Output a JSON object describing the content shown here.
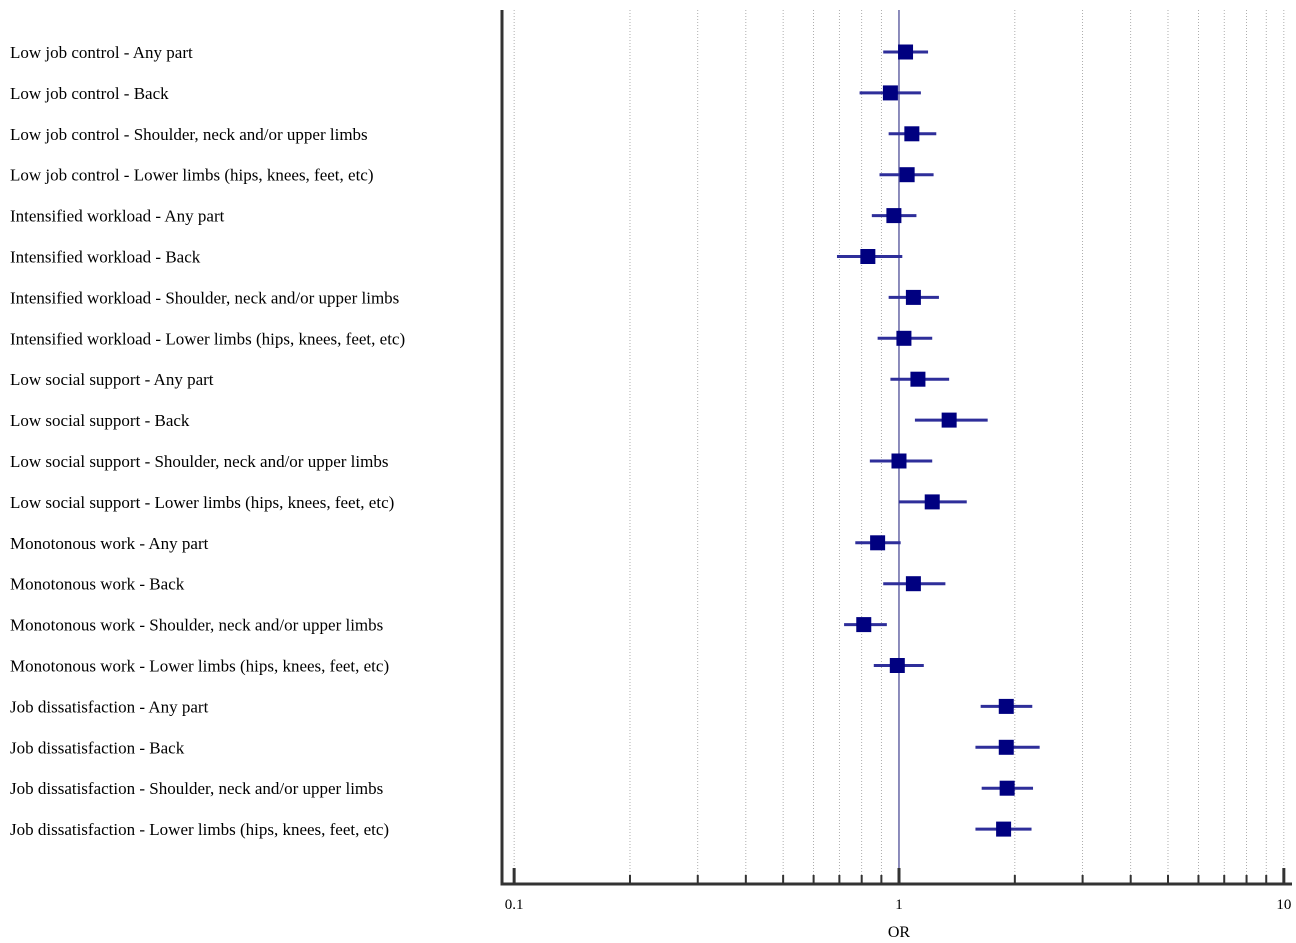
{
  "chart_data": {
    "type": "forest",
    "xlabel": "OR",
    "xscale": "log",
    "xlim": [
      0.093,
      10.5
    ],
    "reference_line": 1,
    "grid": "vertical-dotted",
    "ticks": [
      {
        "value": 0.1,
        "label": "0.1"
      },
      {
        "value": 1,
        "label": "1"
      },
      {
        "value": 10,
        "label": "10"
      }
    ],
    "colors": {
      "marker": "#000080",
      "ci": "#2e2e9a",
      "reference": "#1a1a7a",
      "axis": "#333333",
      "grid": "#9a9a9a"
    },
    "rows": [
      {
        "label": "Low job control - Any part",
        "or": 1.04,
        "lo": 0.91,
        "hi": 1.19
      },
      {
        "label": "Low job control - Back",
        "or": 0.95,
        "lo": 0.79,
        "hi": 1.14
      },
      {
        "label": "Low job control - Shoulder, neck and/or upper limbs",
        "or": 1.08,
        "lo": 0.94,
        "hi": 1.25
      },
      {
        "label": "Low job control - Lower limbs (hips, knees, feet, etc)",
        "or": 1.05,
        "lo": 0.89,
        "hi": 1.23
      },
      {
        "label": "Intensified workload - Any part",
        "or": 0.97,
        "lo": 0.85,
        "hi": 1.11
      },
      {
        "label": "Intensified workload - Back",
        "or": 0.83,
        "lo": 0.69,
        "hi": 1.02
      },
      {
        "label": "Intensified workload - Shoulder, neck and/or upper limbs",
        "or": 1.09,
        "lo": 0.94,
        "hi": 1.27
      },
      {
        "label": "Intensified workload - Lower limbs (hips, knees, feet, etc)",
        "or": 1.03,
        "lo": 0.88,
        "hi": 1.22
      },
      {
        "label": "Low social support - Any part",
        "or": 1.12,
        "lo": 0.95,
        "hi": 1.35
      },
      {
        "label": "Low social support - Back",
        "or": 1.35,
        "lo": 1.1,
        "hi": 1.7
      },
      {
        "label": "Low social support - Shoulder, neck and/or upper limbs",
        "or": 1.0,
        "lo": 0.84,
        "hi": 1.22
      },
      {
        "label": "Low social support - Lower limbs (hips, knees, feet, etc)",
        "or": 1.22,
        "lo": 1.0,
        "hi": 1.5
      },
      {
        "label": "Monotonous work - Any part",
        "or": 0.88,
        "lo": 0.77,
        "hi": 1.01
      },
      {
        "label": "Monotonous work - Back",
        "or": 1.09,
        "lo": 0.91,
        "hi": 1.32
      },
      {
        "label": "Monotonous work - Shoulder, neck and/or upper limbs",
        "or": 0.81,
        "lo": 0.72,
        "hi": 0.93
      },
      {
        "label": "Monotonous work - Lower limbs (hips, knees, feet, etc)",
        "or": 0.99,
        "lo": 0.86,
        "hi": 1.16
      },
      {
        "label": "Job dissatisfaction - Any part",
        "or": 1.9,
        "lo": 1.63,
        "hi": 2.22
      },
      {
        "label": "Job dissatisfaction - Back",
        "or": 1.9,
        "lo": 1.58,
        "hi": 2.32
      },
      {
        "label": "Job dissatisfaction - Shoulder, neck and/or upper limbs",
        "or": 1.91,
        "lo": 1.64,
        "hi": 2.23
      },
      {
        "label": "Job dissatisfaction - Lower limbs (hips, knees, feet, etc)",
        "or": 1.87,
        "lo": 1.58,
        "hi": 2.21
      }
    ]
  }
}
